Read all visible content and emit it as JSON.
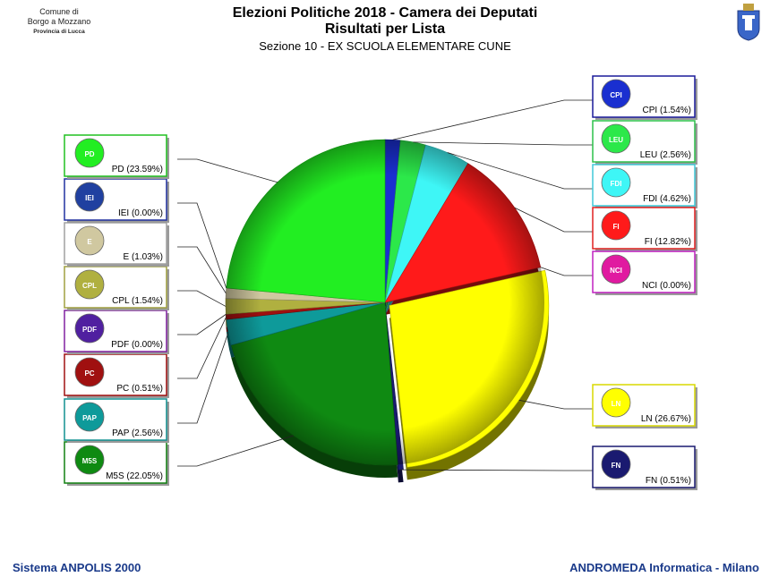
{
  "header": {
    "comune_line1": "Comune di",
    "comune_line2": "Borgo a Mozzano",
    "provincia": "Provincia di Lucca",
    "title": "Elezioni Politiche 2018 - Camera dei Deputati",
    "subtitle": "Risultati per Lista",
    "section": "Sezione 10 - EX SCUOLA ELEMENTARE CUNE"
  },
  "footer": {
    "left": "Sistema ANPOLIS 2000",
    "right": "ANDROMEDA Informatica - Milano"
  },
  "chart_data": {
    "type": "pie",
    "title": "Risultati per Lista",
    "slices": [
      {
        "label": "CPI",
        "display": "CPI (1.54%)",
        "value": 1.54,
        "color": "#1a2fd0",
        "side": "right",
        "logo": "CPI"
      },
      {
        "label": "LEU",
        "display": "LEU (2.56%)",
        "value": 2.56,
        "color": "#2ce84a",
        "side": "right",
        "logo": "LEU"
      },
      {
        "label": "FDI",
        "display": "FDI (4.62%)",
        "value": 4.62,
        "color": "#3ef6f6",
        "side": "right",
        "logo": "FDI"
      },
      {
        "label": "FI",
        "display": "FI (12.82%)",
        "value": 12.82,
        "color": "#ff1a1a",
        "side": "right",
        "logo": "FI"
      },
      {
        "label": "NCI",
        "display": "NCI (0.00%)",
        "value": 0.0,
        "color": "#e01aa0",
        "side": "right",
        "logo": "NCI"
      },
      {
        "label": "LN",
        "display": "LN (26.67%)",
        "value": 26.67,
        "color": "#ffff00",
        "side": "right",
        "logo": "LN"
      },
      {
        "label": "FN",
        "display": "FN (0.51%)",
        "value": 0.51,
        "color": "#1a1a70",
        "side": "right",
        "logo": "FN"
      },
      {
        "label": "M5S",
        "display": "M5S (22.05%)",
        "value": 22.05,
        "color": "#0f8a12",
        "side": "left",
        "logo": "M5S"
      },
      {
        "label": "PAP",
        "display": "PAP (2.56%)",
        "value": 2.56,
        "color": "#0e9a9a",
        "side": "left",
        "logo": "PAP"
      },
      {
        "label": "PC",
        "display": "PC (0.51%)",
        "value": 0.51,
        "color": "#a01010",
        "side": "left",
        "logo": "PC"
      },
      {
        "label": "PDF",
        "display": "PDF (0.00%)",
        "value": 0.0,
        "color": "#5020a0",
        "side": "left",
        "logo": "PDF"
      },
      {
        "label": "CPL",
        "display": "CPL (1.54%)",
        "value": 1.54,
        "color": "#b0b040",
        "side": "left",
        "logo": "CPL"
      },
      {
        "label": "E",
        "display": "E (1.03%)",
        "value": 1.03,
        "color": "#d0c8a0",
        "side": "left",
        "logo": "E"
      },
      {
        "label": "IEI",
        "display": "IEI (0.00%)",
        "value": 0.0,
        "color": "#2040a0",
        "side": "left",
        "logo": "IEI"
      },
      {
        "label": "PD",
        "display": "PD (23.59%)",
        "value": 23.59,
        "color": "#22ee22",
        "side": "left",
        "logo": "PD"
      }
    ],
    "legend_border_colors": {
      "CPI": "#1a1a9a",
      "LEU": "#2cc04a",
      "FDI": "#40c8d8",
      "FI": "#e02020",
      "NCI": "#c020c0",
      "LN": "#d8d800",
      "FN": "#1a1a70",
      "M5S": "#108010",
      "PAP": "#109090",
      "PC": "#a01010",
      "PDF": "#8020a0",
      "CPL": "#a0a040",
      "E": "#a0a0a0",
      "IEI": "#2030a0",
      "PD": "#20c020"
    }
  }
}
